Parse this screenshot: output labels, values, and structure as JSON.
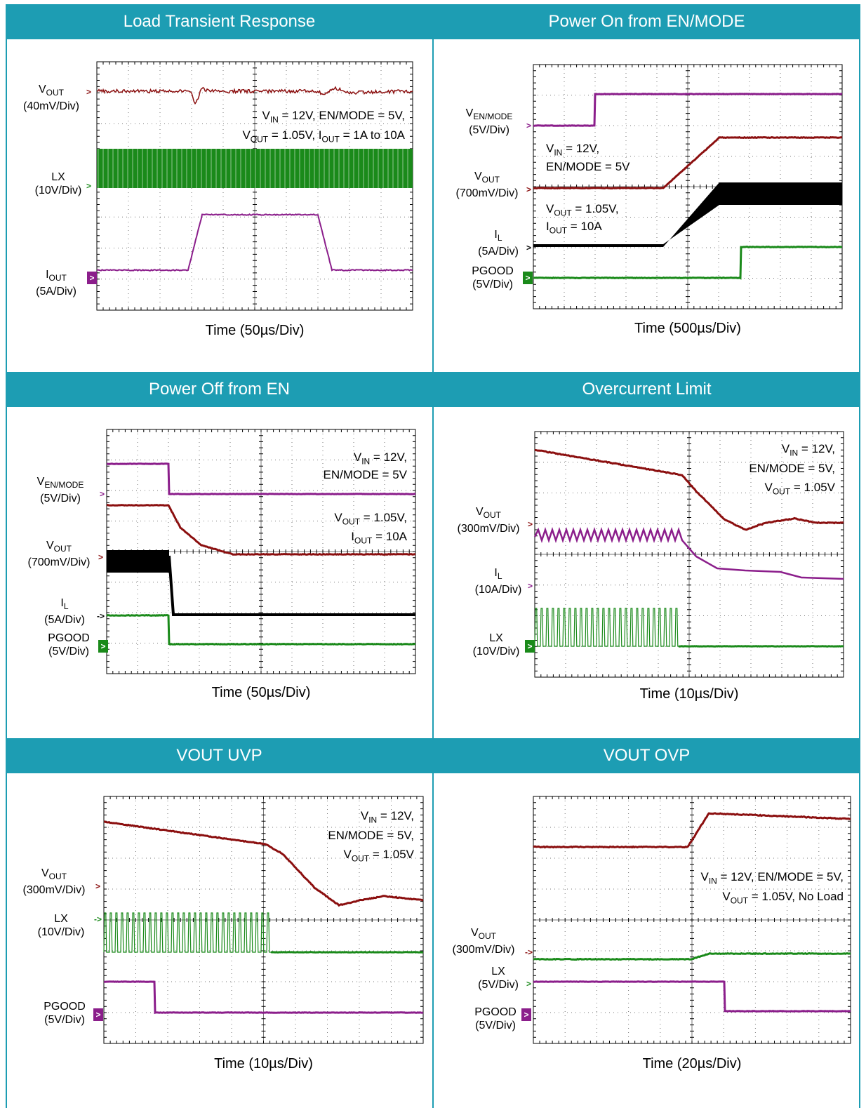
{
  "colors": {
    "header": "#1d9db3",
    "vout": "#8b0f0f",
    "lx": "#1a8a1a",
    "iout": "#8b1e8b",
    "il": "#000000",
    "pgood": "#1a8a1a",
    "ven": "#8b1e8b"
  },
  "chart_data": [
    {
      "type": "line",
      "title": "Load Transient Response",
      "xlabel": "Time (50µs/Div)",
      "annotation": [
        "V_IN = 12V, EN/MODE = 5V,",
        "V_OUT = 1.05V, I_OUT = 1A to 10A"
      ],
      "channels": [
        {
          "name": "V_OUT",
          "scale": "(40mV/Div)"
        },
        {
          "name": "LX",
          "scale": "(10V/Div)"
        },
        {
          "name": "I_OUT",
          "scale": "(5A/Div)"
        }
      ]
    },
    {
      "type": "line",
      "title": "Power On from EN/MODE",
      "xlabel": "Time (500µs/Div)",
      "annotation": [
        "V_IN = 12V,",
        "EN/MODE = 5V",
        "V_OUT = 1.05V,",
        "I_OUT = 10A"
      ],
      "channels": [
        {
          "name": "V_EN/MODE",
          "scale": "(5V/Div)"
        },
        {
          "name": "V_OUT",
          "scale": "(700mV/Div)"
        },
        {
          "name": "I_L",
          "scale": "(5A/Div)"
        },
        {
          "name": "PGOOD",
          "scale": "(5V/Div)"
        }
      ]
    },
    {
      "type": "line",
      "title": "Power Off from EN",
      "xlabel": "Time (50µs/Div)",
      "annotation": [
        "V_IN = 12V,",
        "EN/MODE = 5V",
        "V_OUT = 1.05V,",
        "I_OUT = 10A"
      ],
      "channels": [
        {
          "name": "V_EN/MODE",
          "scale": "(5V/Div)"
        },
        {
          "name": "V_OUT",
          "scale": "(700mV/Div)"
        },
        {
          "name": "I_L",
          "scale": "(5A/Div)"
        },
        {
          "name": "PGOOD",
          "scale": "(5V/Div)"
        }
      ]
    },
    {
      "type": "line",
      "title": "Overcurrent Limit",
      "xlabel": "Time (10µs/Div)",
      "annotation": [
        "V_IN = 12V,",
        "EN/MODE = 5V,",
        "V_OUT = 1.05V"
      ],
      "channels": [
        {
          "name": "V_OUT",
          "scale": "(300mV/Div)"
        },
        {
          "name": "I_L",
          "scale": "(10A/Div)"
        },
        {
          "name": "LX",
          "scale": "(10V/Div)"
        }
      ]
    },
    {
      "type": "line",
      "title": "VOUT UVP",
      "xlabel": "Time (10µs/Div)",
      "annotation": [
        "V_IN = 12V,",
        "EN/MODE = 5V,",
        "V_OUT = 1.05V"
      ],
      "channels": [
        {
          "name": "V_OUT",
          "scale": "(300mV/Div)"
        },
        {
          "name": "LX",
          "scale": "(10V/Div)"
        },
        {
          "name": "PGOOD",
          "scale": "(5V/Div)"
        }
      ]
    },
    {
      "type": "line",
      "title": "VOUT OVP",
      "xlabel": "Time (20µs/Div)",
      "annotation": [
        "V_IN = 12V, EN/MODE = 5V,",
        "V_OUT = 1.05V, No Load"
      ],
      "channels": [
        {
          "name": "V_OUT",
          "scale": "(300mV/Div)"
        },
        {
          "name": "LX",
          "scale": "(5V/Div)"
        },
        {
          "name": "PGOOD",
          "scale": "(5V/Div)"
        }
      ]
    }
  ]
}
